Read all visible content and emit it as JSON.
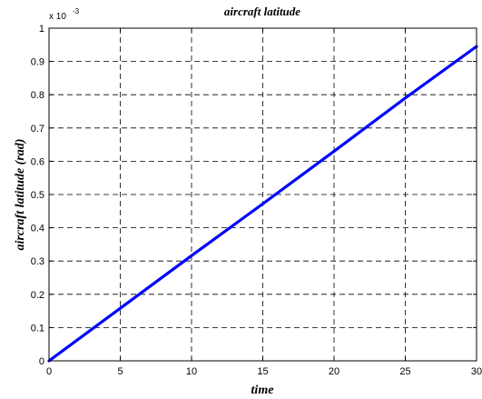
{
  "chart_data": {
    "type": "line",
    "title": "aircraft latitude",
    "xlabel": "time",
    "ylabel": "aircraft latitude (rad)",
    "y_scale_label": {
      "base": "x 10",
      "exponent": "-3"
    },
    "xlim": [
      0,
      30
    ],
    "ylim": [
      0,
      1
    ],
    "x_ticks": [
      0,
      5,
      10,
      15,
      20,
      25,
      30
    ],
    "x_tick_labels": [
      "0",
      "5",
      "10",
      "15",
      "20",
      "25",
      "30"
    ],
    "y_ticks": [
      0,
      0.1,
      0.2,
      0.3,
      0.4,
      0.5,
      0.6,
      0.7,
      0.8,
      0.9,
      1
    ],
    "y_tick_labels": [
      "0",
      "0.1",
      "0.2",
      "0.3",
      "0.4",
      "0.5",
      "0.6",
      "0.7",
      "0.8",
      "0.9",
      "1"
    ],
    "grid": true,
    "series": [
      {
        "color": "#0000ff",
        "x": [
          0,
          5,
          10,
          15,
          20,
          25,
          30
        ],
        "y": [
          0,
          0.158,
          0.316,
          0.472,
          0.63,
          0.79,
          0.945
        ]
      }
    ]
  }
}
